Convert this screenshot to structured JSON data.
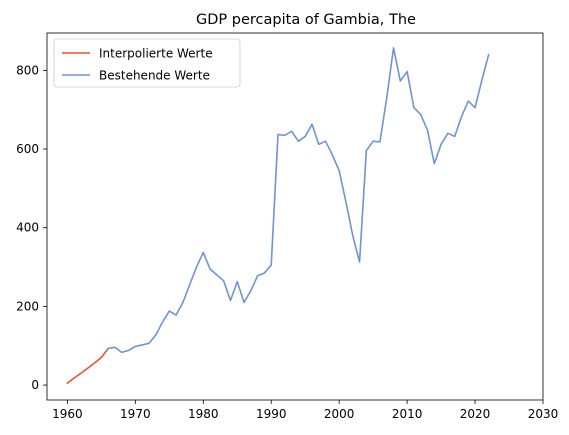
{
  "chart_data": {
    "type": "line",
    "title": "GDP percapita of Gambia, The",
    "xlabel": "",
    "ylabel": "",
    "xlim": [
      1957,
      2030
    ],
    "ylim": [
      -38,
      895
    ],
    "x_ticks": [
      1960,
      1970,
      1980,
      1990,
      2000,
      2010,
      2020,
      2030
    ],
    "y_ticks": [
      0,
      200,
      400,
      600,
      800
    ],
    "grid": false,
    "legend_position": "top-left",
    "series": [
      {
        "name": "Interpolierte Werte",
        "color": "#e8542a",
        "x": [
          1960,
          1961,
          1962,
          1963,
          1964,
          1965,
          1966
        ],
        "y": [
          5,
          18,
          30,
          43,
          56,
          70,
          93
        ]
      },
      {
        "name": "Bestehende Werte",
        "color": "#6f93d8",
        "x": [
          1966,
          1967,
          1968,
          1969,
          1970,
          1971,
          1972,
          1973,
          1974,
          1975,
          1976,
          1977,
          1978,
          1979,
          1980,
          1981,
          1982,
          1983,
          1984,
          1985,
          1986,
          1987,
          1988,
          1989,
          1990,
          1991,
          1992,
          1993,
          1994,
          1995,
          1996,
          1997,
          1998,
          1999,
          2000,
          2001,
          2002,
          2003,
          2004,
          2005,
          2006,
          2007,
          2008,
          2009,
          2010,
          2011,
          2012,
          2013,
          2014,
          2015,
          2016,
          2017,
          2018,
          2019,
          2020,
          2021,
          2022
        ],
        "y": [
          93,
          96,
          83,
          88,
          98,
          102,
          106,
          127,
          160,
          188,
          178,
          210,
          255,
          300,
          337,
          295,
          280,
          265,
          215,
          263,
          210,
          240,
          278,
          285,
          305,
          637,
          635,
          645,
          620,
          632,
          663,
          612,
          620,
          585,
          545,
          465,
          380,
          313,
          596,
          620,
          618,
          730,
          857,
          773,
          797,
          705,
          688,
          648,
          563,
          612,
          640,
          632,
          682,
          722,
          705,
          775,
          840
        ]
      }
    ]
  }
}
